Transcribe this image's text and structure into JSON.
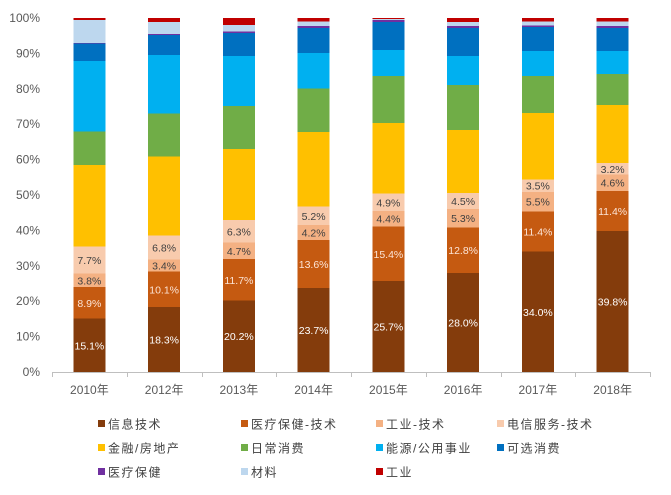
{
  "chart_data": {
    "type": "bar",
    "stacked": true,
    "title": "",
    "xlabel": "",
    "ylabel": "",
    "ylim": [
      0,
      100
    ],
    "y_ticks": [
      0,
      10,
      20,
      30,
      40,
      50,
      60,
      70,
      80,
      90,
      100
    ],
    "y_tick_labels": [
      "0%",
      "10%",
      "20%",
      "30%",
      "40%",
      "50%",
      "60%",
      "70%",
      "80%",
      "90%",
      "100%"
    ],
    "categories": [
      "2010年",
      "2012年",
      "2013年",
      "2014年",
      "2015年",
      "2016年",
      "2017年",
      "2018年"
    ],
    "legend_position": "bottom",
    "series": [
      {
        "name": "信息技术",
        "color": "#843C0C",
        "values": [
          15.1,
          18.3,
          20.2,
          23.7,
          25.7,
          28.0,
          34.0,
          39.8
        ],
        "data_labels": [
          "15.1%",
          "18.3%",
          "20.2%",
          "23.7%",
          "25.7%",
          "28.0%",
          "34.0%",
          "39.8%"
        ],
        "label_color": "#FFFFFF"
      },
      {
        "name": "医疗保健-技术",
        "color": "#C55A11",
        "values": [
          8.9,
          10.1,
          11.7,
          13.6,
          15.4,
          12.8,
          11.4,
          11.4
        ],
        "data_labels": [
          "8.9%",
          "10.1%",
          "11.7%",
          "13.6%",
          "15.4%",
          "12.8%",
          "11.4%",
          "11.4%"
        ],
        "label_color": "#FCE4D6"
      },
      {
        "name": "工业-技术",
        "color": "#F4B183",
        "values": [
          3.8,
          3.4,
          4.7,
          4.2,
          4.4,
          5.3,
          5.5,
          4.6
        ],
        "data_labels": [
          "3.8%",
          "3.4%",
          "4.7%",
          "4.2%",
          "4.4%",
          "5.3%",
          "5.5%",
          "4.6%"
        ],
        "label_color": "#404040"
      },
      {
        "name": "电信服务-技术",
        "color": "#F8CBAD",
        "values": [
          7.7,
          6.8,
          6.3,
          5.2,
          4.9,
          4.5,
          3.5,
          3.2
        ],
        "data_labels": [
          "7.7%",
          "6.8%",
          "6.3%",
          "5.2%",
          "4.9%",
          "4.5%",
          "3.5%",
          "3.2%"
        ],
        "label_color": "#404040"
      },
      {
        "name": "金融/房地产",
        "color": "#FFC000",
        "values": [
          23.0,
          22.3,
          20.1,
          21.1,
          19.9,
          17.8,
          18.8,
          16.4
        ]
      },
      {
        "name": "日常消费",
        "color": "#70AD47",
        "values": [
          9.5,
          12.1,
          12.2,
          12.3,
          13.3,
          12.7,
          10.4,
          8.8
        ]
      },
      {
        "name": "能源/公用事业",
        "color": "#00B0F0",
        "values": [
          19.8,
          16.6,
          14.1,
          10.0,
          7.4,
          8.2,
          7.1,
          6.5
        ]
      },
      {
        "name": "可选消费",
        "color": "#0070C0",
        "values": [
          5.0,
          5.6,
          6.5,
          7.1,
          7.9,
          7.9,
          6.8,
          6.5
        ]
      },
      {
        "name": "医疗保健",
        "color": "#7030A0",
        "values": [
          0.2,
          0.3,
          0.4,
          0.5,
          0.6,
          0.5,
          0.4,
          0.6
        ]
      },
      {
        "name": "材料",
        "color": "#BDD7EE",
        "values": [
          6.5,
          3.3,
          1.8,
          1.3,
          0.2,
          1.2,
          1.1,
          1.2
        ]
      },
      {
        "name": "工业",
        "color": "#C00000",
        "values": [
          0.5,
          1.2,
          2.0,
          1.0,
          0.3,
          1.1,
          1.0,
          1.0
        ]
      }
    ]
  }
}
